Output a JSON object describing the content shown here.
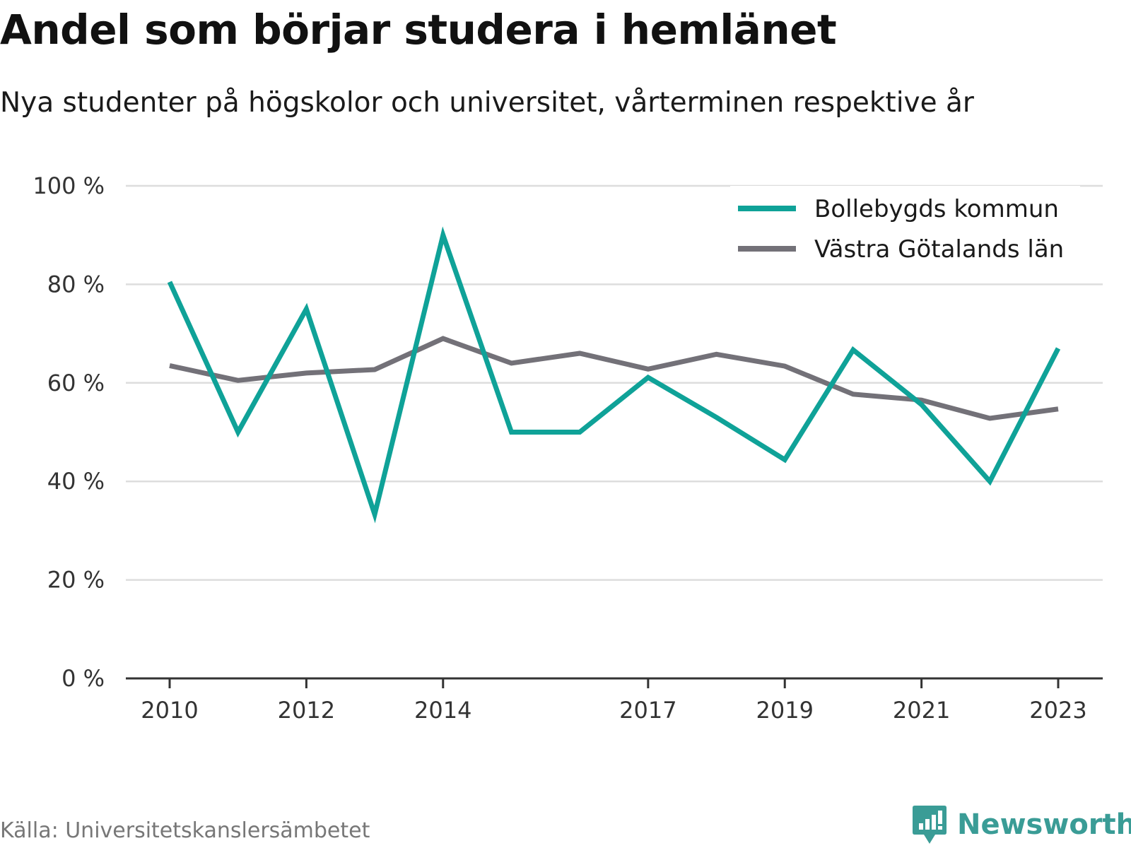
{
  "source": "Källa: Universitetskanslersämbetet",
  "brand": {
    "name": "Newsworthy",
    "icon": "newsworthy-logo-icon",
    "color": "#3a9c96"
  },
  "chart_data": {
    "type": "line",
    "title": "Andel som börjar studera i hemlänet",
    "subtitle": "Nya studenter på högskolor och universitet, vårterminen respektive år",
    "x": [
      2010,
      2011,
      2012,
      2013,
      2014,
      2015,
      2016,
      2017,
      2018,
      2019,
      2020,
      2021,
      2022,
      2023
    ],
    "x_tick_values": [
      2010,
      2012,
      2014,
      2017,
      2019,
      2021,
      2023
    ],
    "x_tick_labels": [
      "2010",
      "2012",
      "2014",
      "2017",
      "2019",
      "2021",
      "2023"
    ],
    "y_tick_values": [
      0,
      20,
      40,
      60,
      80,
      100
    ],
    "y_tick_labels": [
      "0 %",
      "20 %",
      "40 %",
      "60 %",
      "80 %",
      "100 %"
    ],
    "ylim": [
      0,
      100
    ],
    "xlim": [
      2010,
      2023
    ],
    "grid": true,
    "legend_position": "top-right",
    "series": [
      {
        "name": "Bollebygds kommun",
        "color": "#0fa298",
        "values": [
          80.5,
          50,
          75,
          33.3,
          90,
          50,
          50,
          61.1,
          53,
          44.4,
          66.7,
          55.6,
          40,
          67
        ]
      },
      {
        "name": "Västra Götalands län",
        "color": "#737178",
        "values": [
          63.5,
          60.5,
          62,
          62.7,
          69,
          64,
          66,
          62.8,
          65.8,
          63.4,
          57.7,
          56.5,
          52.8,
          54.7
        ]
      }
    ]
  }
}
